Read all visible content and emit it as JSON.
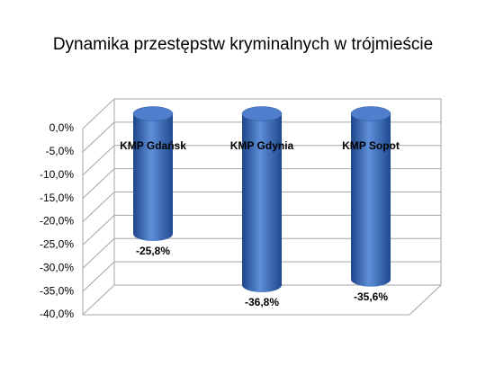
{
  "chart_data": {
    "type": "bar",
    "title": "Dynamika przestępstw kryminalnych w trójmieście",
    "categories": [
      "KMP Gdańsk",
      "KMP Gdynia",
      "KMP Sopot"
    ],
    "values": [
      -25.8,
      -36.8,
      -35.6
    ],
    "value_labels": [
      "-25,8%",
      "-36,8%",
      "-35,6%"
    ],
    "color": "#3366b8",
    "ylim": [
      -40,
      0
    ],
    "yticks": [
      {
        "value": 0,
        "label": "0,0%"
      },
      {
        "value": -5,
        "label": "-5,0%"
      },
      {
        "value": -10,
        "label": "-10,0%"
      },
      {
        "value": -15,
        "label": "-15,0%"
      },
      {
        "value": -20,
        "label": "-20,0%"
      },
      {
        "value": -25,
        "label": "-25,0%"
      },
      {
        "value": -30,
        "label": "-30,0%"
      },
      {
        "value": -35,
        "label": "-35,0%"
      },
      {
        "value": -40,
        "label": "-40,0%"
      }
    ],
    "grid": true
  }
}
